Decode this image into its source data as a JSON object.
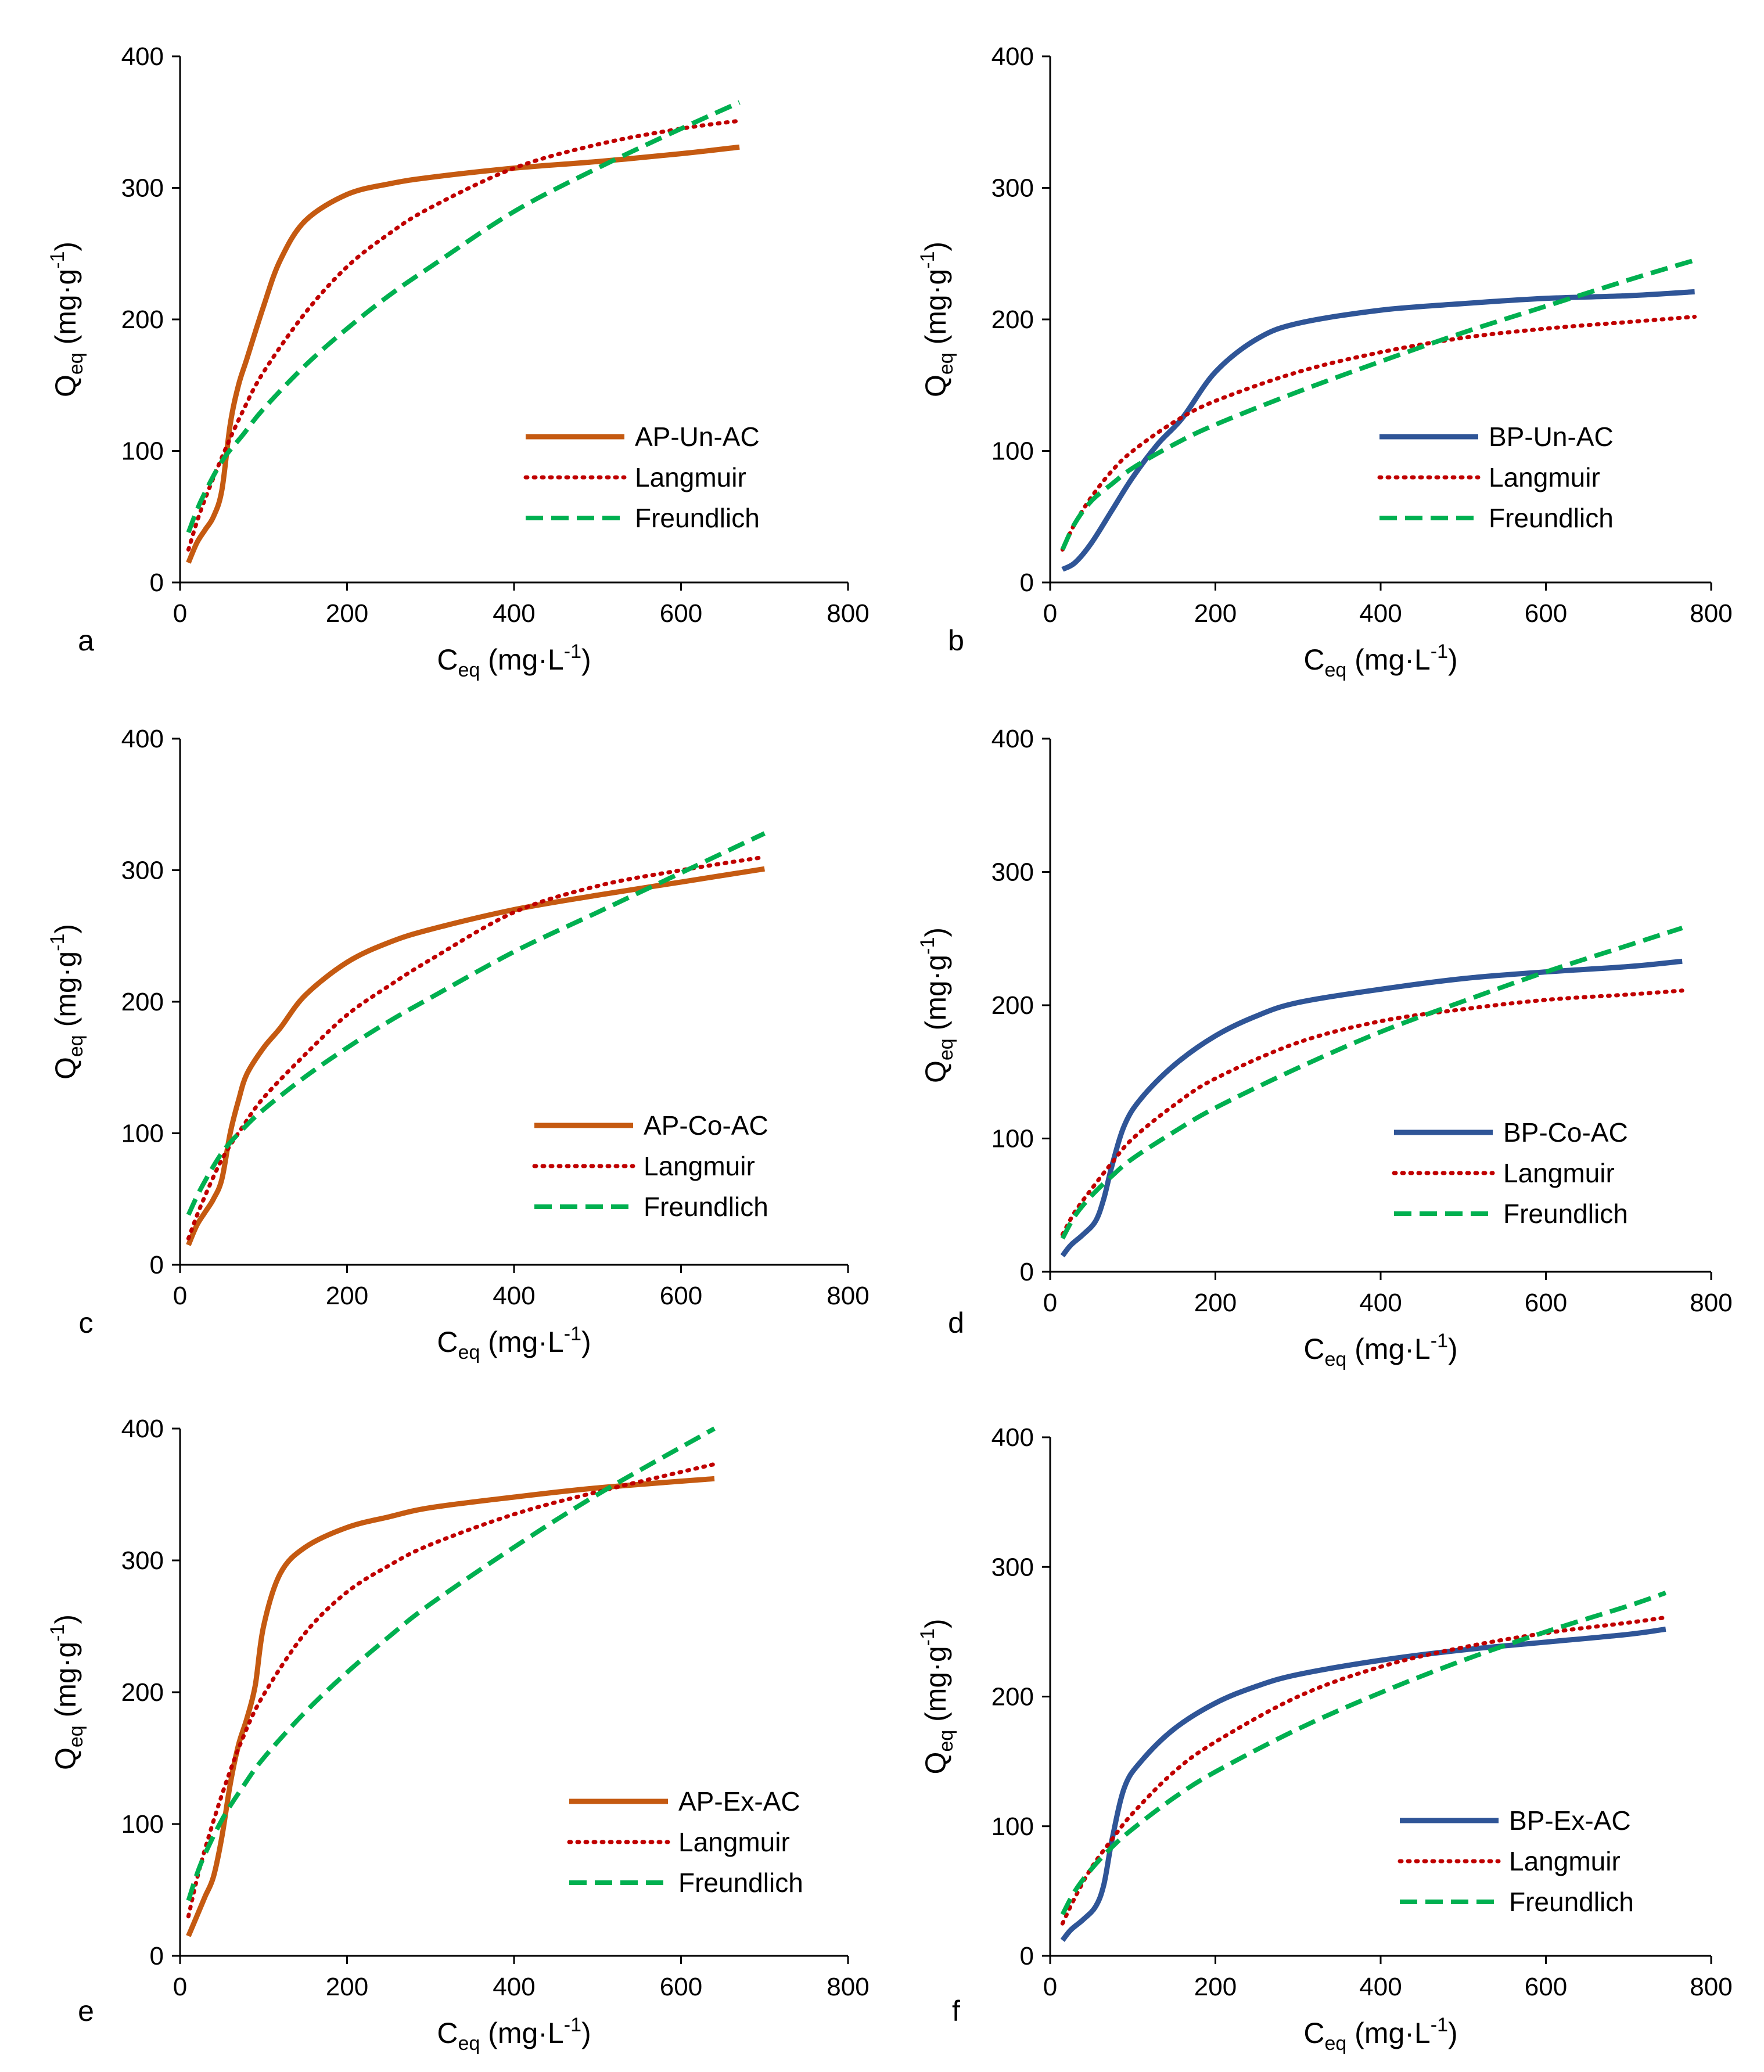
{
  "chart_data": [
    {
      "type": "line",
      "panel_letter": "a",
      "xlabel": {
        "main": "C",
        "sub": "eq",
        "units": " (mg·L",
        "sup": "-1",
        "close": ")"
      },
      "ylabel": {
        "main": "Q",
        "sub": "eq",
        "units": " (mg·g",
        "sup": "-1",
        "close": ")"
      },
      "xlim": [
        0,
        800
      ],
      "ylim": [
        0,
        400
      ],
      "xticks": [
        0,
        200,
        400,
        600,
        800
      ],
      "yticks": [
        0,
        100,
        200,
        300,
        400
      ],
      "grid": false,
      "legend_position": "lower-right",
      "series": [
        {
          "name": "AP-Un-AC",
          "style": "solid",
          "color": "#c55a11",
          "x": [
            10,
            20,
            30,
            40,
            50,
            60,
            70,
            80,
            100,
            120,
            150,
            200,
            250,
            300,
            400,
            500,
            600,
            670
          ],
          "y": [
            15,
            30,
            40,
            50,
            70,
            120,
            150,
            170,
            210,
            245,
            275,
            295,
            303,
            308,
            315,
            320,
            326,
            331
          ]
        },
        {
          "name": "Langmuir",
          "style": "dotted",
          "color": "#c00000",
          "x": [
            10,
            25,
            50,
            75,
            100,
            150,
            200,
            250,
            300,
            400,
            500,
            600,
            670
          ],
          "y": [
            25,
            55,
            95,
            130,
            160,
            205,
            240,
            265,
            285,
            315,
            333,
            345,
            351
          ]
        },
        {
          "name": "Freundlich",
          "style": "dashed",
          "color": "#00b050",
          "x": [
            10,
            25,
            50,
            75,
            100,
            150,
            200,
            250,
            300,
            400,
            500,
            600,
            670
          ],
          "y": [
            38,
            62,
            92,
            112,
            132,
            165,
            193,
            218,
            240,
            282,
            315,
            345,
            365
          ]
        }
      ]
    },
    {
      "type": "line",
      "panel_letter": "b",
      "xlabel": {
        "main": "C",
        "sub": "eq",
        "units": " (mg·L",
        "sup": "-1",
        "close": ")"
      },
      "ylabel": {
        "main": "Q",
        "sub": "eq",
        "units": " (mg·g",
        "sup": "-1",
        "close": ")"
      },
      "xlim": [
        0,
        800
      ],
      "ylim": [
        0,
        400
      ],
      "xticks": [
        0,
        200,
        400,
        600,
        800
      ],
      "yticks": [
        0,
        100,
        200,
        300,
        400
      ],
      "grid": false,
      "legend_position": "lower-right",
      "series": [
        {
          "name": "BP-Un-AC",
          "style": "solid",
          "color": "#2f5597",
          "x": [
            15,
            30,
            50,
            75,
            100,
            130,
            160,
            200,
            250,
            300,
            400,
            500,
            600,
            700,
            780
          ],
          "y": [
            10,
            15,
            30,
            55,
            80,
            105,
            125,
            160,
            185,
            197,
            207,
            212,
            216,
            218,
            221
          ]
        },
        {
          "name": "Langmuir",
          "style": "dotted",
          "color": "#c00000",
          "x": [
            15,
            30,
            50,
            75,
            100,
            150,
            200,
            300,
            400,
            500,
            600,
            700,
            780
          ],
          "y": [
            25,
            45,
            65,
            85,
            100,
            122,
            138,
            160,
            175,
            186,
            193,
            198,
            202
          ]
        },
        {
          "name": "Freundlich",
          "style": "dashed",
          "color": "#00b050",
          "x": [
            15,
            30,
            50,
            75,
            100,
            150,
            200,
            300,
            400,
            500,
            600,
            700,
            780
          ],
          "y": [
            25,
            45,
            62,
            75,
            87,
            105,
            120,
            145,
            168,
            190,
            210,
            230,
            245
          ]
        }
      ]
    },
    {
      "type": "line",
      "panel_letter": "c",
      "xlabel": {
        "main": "C",
        "sub": "eq",
        "units": " (mg·L",
        "sup": "-1",
        "close": ")"
      },
      "ylabel": {
        "main": "Q",
        "sub": "eq",
        "units": " (mg·g",
        "sup": "-1",
        "close": ")"
      },
      "xlim": [
        0,
        800
      ],
      "ylim": [
        0,
        400
      ],
      "xticks": [
        0,
        200,
        400,
        600,
        800
      ],
      "yticks": [
        0,
        100,
        200,
        300,
        400
      ],
      "grid": false,
      "legend_position": "lower-right",
      "series": [
        {
          "name": "AP-Co-AC",
          "style": "solid",
          "color": "#c55a11",
          "x": [
            10,
            20,
            30,
            40,
            50,
            60,
            70,
            80,
            100,
            120,
            150,
            200,
            250,
            300,
            400,
            500,
            600,
            700
          ],
          "y": [
            15,
            30,
            40,
            50,
            65,
            100,
            125,
            145,
            165,
            180,
            205,
            230,
            245,
            255,
            270,
            281,
            291,
            301
          ]
        },
        {
          "name": "Langmuir",
          "style": "dotted",
          "color": "#c00000",
          "x": [
            10,
            25,
            50,
            75,
            100,
            150,
            200,
            250,
            300,
            400,
            500,
            600,
            700
          ],
          "y": [
            20,
            45,
            80,
            105,
            127,
            160,
            190,
            212,
            232,
            268,
            288,
            300,
            310
          ]
        },
        {
          "name": "Freundlich",
          "style": "dashed",
          "color": "#00b050",
          "x": [
            10,
            25,
            50,
            75,
            100,
            150,
            200,
            250,
            300,
            400,
            500,
            600,
            700
          ],
          "y": [
            38,
            58,
            85,
            103,
            118,
            143,
            165,
            185,
            203,
            238,
            268,
            298,
            328
          ]
        }
      ]
    },
    {
      "type": "line",
      "panel_letter": "d",
      "xlabel": {
        "main": "C",
        "sub": "eq",
        "units": " (mg·L",
        "sup": "-1",
        "close": ")"
      },
      "ylabel": {
        "main": "Q",
        "sub": "eq",
        "units": " (mg·g",
        "sup": "-1",
        "close": ")"
      },
      "xlim": [
        0,
        800
      ],
      "ylim": [
        0,
        400
      ],
      "xticks": [
        0,
        200,
        400,
        600,
        800
      ],
      "yticks": [
        0,
        100,
        200,
        300,
        400
      ],
      "grid": false,
      "legend_position": "lower-right",
      "series": [
        {
          "name": "BP-Co-AC",
          "style": "solid",
          "color": "#2f5597",
          "x": [
            15,
            25,
            40,
            55,
            65,
            75,
            90,
            110,
            150,
            200,
            250,
            300,
            400,
            500,
            600,
            700,
            765
          ],
          "y": [
            12,
            20,
            28,
            38,
            55,
            80,
            110,
            130,
            155,
            177,
            192,
            202,
            212,
            220,
            225,
            229,
            233
          ]
        },
        {
          "name": "Langmuir",
          "style": "dotted",
          "color": "#c00000",
          "x": [
            15,
            30,
            50,
            75,
            100,
            150,
            200,
            300,
            400,
            500,
            600,
            700,
            765
          ],
          "y": [
            28,
            45,
            62,
            82,
            100,
            125,
            145,
            172,
            188,
            197,
            204,
            208,
            211
          ]
        },
        {
          "name": "Freundlich",
          "style": "dashed",
          "color": "#00b050",
          "x": [
            15,
            30,
            50,
            75,
            100,
            150,
            200,
            300,
            400,
            500,
            600,
            700,
            765
          ],
          "y": [
            25,
            42,
            57,
            72,
            85,
            105,
            123,
            153,
            180,
            203,
            225,
            245,
            258
          ]
        }
      ]
    },
    {
      "type": "line",
      "panel_letter": "e",
      "xlabel": {
        "main": "C",
        "sub": "eq",
        "units": " (mg·L",
        "sup": "-1",
        "close": ")"
      },
      "ylabel": {
        "main": "Q",
        "sub": "eq",
        "units": " (mg·g",
        "sup": "-1",
        "close": ")"
      },
      "xlim": [
        0,
        800
      ],
      "ylim": [
        0,
        400
      ],
      "xticks": [
        0,
        200,
        400,
        600,
        800
      ],
      "yticks": [
        0,
        100,
        200,
        300,
        400
      ],
      "grid": false,
      "legend_position": "lower-right",
      "series": [
        {
          "name": "AP-Ex-AC",
          "style": "solid",
          "color": "#c55a11",
          "x": [
            10,
            20,
            30,
            40,
            50,
            60,
            70,
            80,
            90,
            100,
            120,
            150,
            200,
            250,
            300,
            400,
            500,
            640
          ],
          "y": [
            15,
            30,
            45,
            60,
            90,
            130,
            160,
            180,
            205,
            250,
            290,
            310,
            325,
            333,
            340,
            348,
            355,
            362
          ]
        },
        {
          "name": "Langmuir",
          "style": "dotted",
          "color": "#c00000",
          "x": [
            10,
            25,
            50,
            75,
            100,
            150,
            200,
            250,
            300,
            400,
            500,
            640
          ],
          "y": [
            30,
            70,
            122,
            165,
            198,
            245,
            276,
            296,
            312,
            335,
            352,
            373
          ]
        },
        {
          "name": "Freundlich",
          "style": "dashed",
          "color": "#00b050",
          "x": [
            10,
            25,
            50,
            75,
            100,
            150,
            200,
            250,
            300,
            400,
            500,
            640
          ],
          "y": [
            42,
            70,
            103,
            128,
            150,
            185,
            215,
            242,
            267,
            310,
            350,
            400
          ]
        }
      ]
    },
    {
      "type": "line",
      "panel_letter": "f",
      "xlabel": {
        "main": "C",
        "sub": "eq",
        "units": " (mg·L",
        "sup": "-1",
        "close": ")"
      },
      "ylabel": {
        "main": "Q",
        "sub": "eq",
        "units": " (mg·g",
        "sup": "-1",
        "close": ")"
      },
      "xlim": [
        0,
        800
      ],
      "ylim": [
        0,
        400
      ],
      "xticks": [
        0,
        200,
        400,
        600,
        800
      ],
      "yticks": [
        0,
        100,
        200,
        300,
        400
      ],
      "grid": false,
      "legend_position": "lower-right",
      "series": [
        {
          "name": "BP-Ex-AC",
          "style": "solid",
          "color": "#2f5597",
          "x": [
            15,
            25,
            40,
            55,
            65,
            75,
            90,
            110,
            150,
            200,
            250,
            300,
            400,
            500,
            600,
            700,
            745
          ],
          "y": [
            12,
            20,
            28,
            38,
            55,
            90,
            130,
            150,
            175,
            195,
            208,
            217,
            228,
            236,
            242,
            248,
            252
          ]
        },
        {
          "name": "Langmuir",
          "style": "dotted",
          "color": "#c00000",
          "x": [
            15,
            30,
            50,
            75,
            100,
            150,
            200,
            300,
            400,
            500,
            600,
            700,
            745
          ],
          "y": [
            25,
            45,
            68,
            90,
            110,
            142,
            165,
            200,
            223,
            238,
            249,
            257,
            261
          ]
        },
        {
          "name": "Freundlich",
          "style": "dashed",
          "color": "#00b050",
          "x": [
            15,
            30,
            50,
            75,
            100,
            150,
            200,
            300,
            400,
            500,
            600,
            700,
            745
          ],
          "y": [
            32,
            50,
            67,
            84,
            98,
            122,
            142,
            175,
            203,
            228,
            250,
            270,
            280
          ]
        }
      ]
    }
  ]
}
